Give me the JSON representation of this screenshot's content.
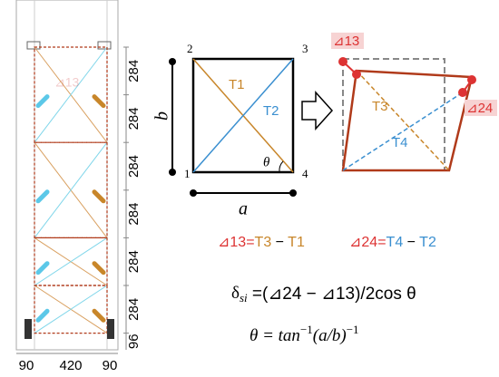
{
  "tower": {
    "label": "⊿13",
    "dimensions": [
      "284",
      "284",
      "284",
      "284",
      "284",
      "284",
      "96"
    ],
    "widths": [
      "90",
      "420",
      "90"
    ]
  },
  "square": {
    "nodes": [
      "1",
      "2",
      "3",
      "4"
    ],
    "side_a": "a",
    "side_b": "b",
    "diag_t1": "T1",
    "diag_t2": "T2",
    "angle": "θ"
  },
  "deformed": {
    "delta13": "⊿13",
    "delta24": "⊿24",
    "diag_t3": "T3",
    "diag_t4": "T4"
  },
  "equations": {
    "eq1": [
      "⊿13",
      "=",
      "T3",
      " − ",
      "T1"
    ],
    "eq2": [
      "⊿24",
      "=",
      "T4",
      " − ",
      "T2"
    ],
    "eq3": [
      "δ",
      "si",
      " =(⊿24 − ⊿13)/2cos θ"
    ],
    "eq4": [
      "θ = tan",
      "−1",
      "(a/b)",
      "−1"
    ]
  }
}
